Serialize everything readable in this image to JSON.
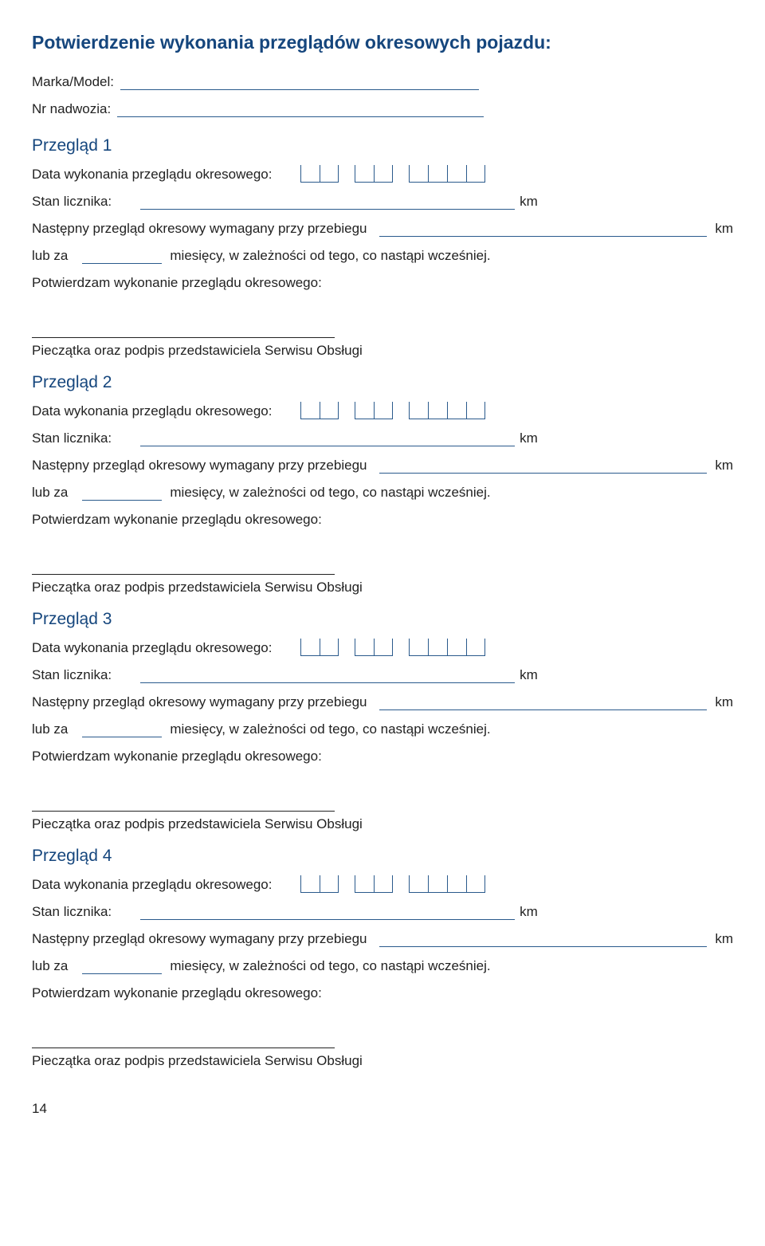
{
  "colors": {
    "accent": "#15467d",
    "line": "#2a5a8c",
    "text": "#222"
  },
  "title": "Potwierdzenie wykonania przeglądów okresowych pojazdu:",
  "fields": {
    "marka_label": "Marka/Model:",
    "nadwozia_label": "Nr nadwozia:"
  },
  "labels": {
    "data_wykonania": "Data wykonania przeglądu okresowego:",
    "stan_licznika": "Stan licznika:",
    "km": "km",
    "nastepny": "Następny przegląd okresowy wymagany przy przebiegu",
    "lub_za": "lub za",
    "miesiecy": "miesięcy, w zależności od tego, co nastąpi wcześniej.",
    "potwierdzam": "Potwierdzam wykonanie przeglądu okresowego:",
    "pieczatka": "Pieczątka oraz podpis przedstawiciela Serwisu Obsługi"
  },
  "sections": [
    {
      "title": "Przegląd 1"
    },
    {
      "title": "Przegląd 2"
    },
    {
      "title": "Przegląd 3"
    },
    {
      "title": "Przegląd 4"
    }
  ],
  "date_groups": [
    2,
    2,
    4
  ],
  "page_number": "14"
}
